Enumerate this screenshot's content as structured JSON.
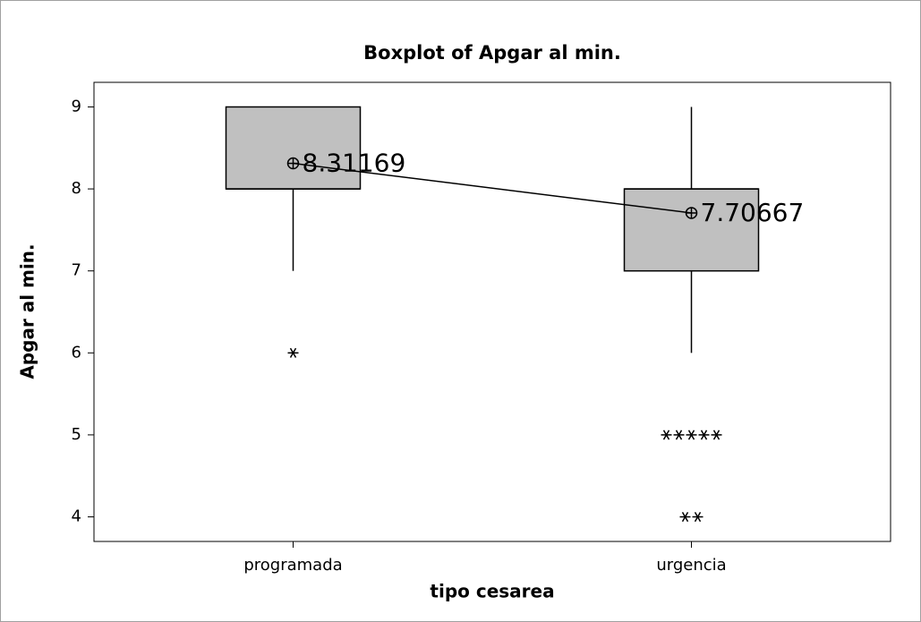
{
  "chart_data": {
    "type": "box",
    "title": "Boxplot of Apgar al min.",
    "xlabel": "tipo cesarea",
    "ylabel": "Apgar al min.",
    "categories": [
      "programada",
      "urgencia"
    ],
    "boxes": [
      {
        "whisker_low": 7,
        "q1": 8,
        "median": 8,
        "q3": 9,
        "whisker_high": 9,
        "mean": 8.31169,
        "outliers": [
          6
        ]
      },
      {
        "whisker_low": 6,
        "q1": 7,
        "median": 8,
        "q3": 8,
        "whisker_high": 9,
        "mean": 7.70667,
        "outliers": [
          5,
          5,
          5,
          5,
          5,
          4,
          4
        ]
      }
    ],
    "color": "#c0c0c0",
    "connect_means": true,
    "ylim": [
      3.7,
      9.3
    ],
    "yticks": [
      4,
      5,
      6,
      7,
      8,
      9
    ]
  }
}
